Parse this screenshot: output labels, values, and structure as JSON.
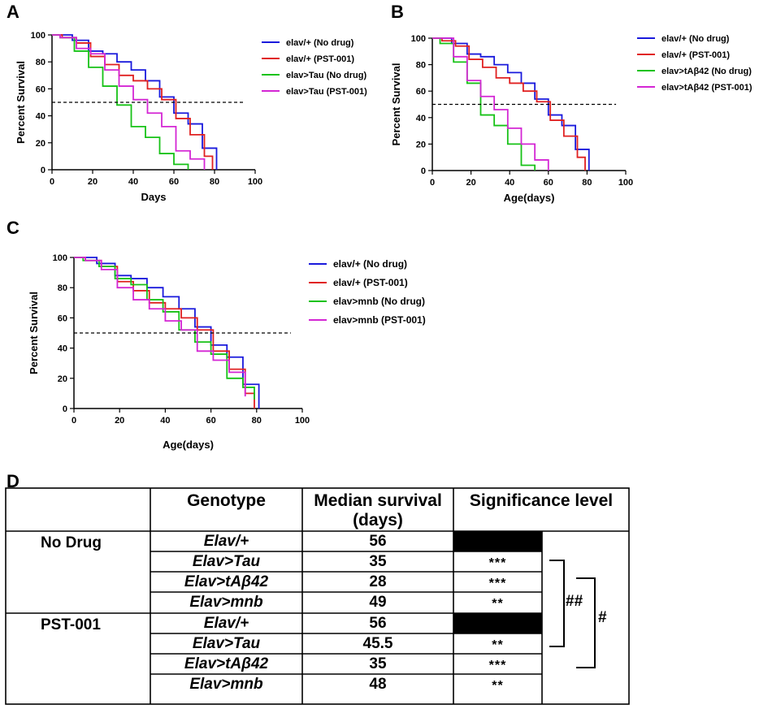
{
  "panels": [
    {
      "letter": "A",
      "xlabel": "Days",
      "ylabel": "Percent Survival",
      "series": [
        {
          "name": "elav/+ (No drug)",
          "color": "#1a1adc",
          "times": [
            0,
            10,
            18,
            25,
            32,
            39,
            46,
            53,
            60,
            67,
            74,
            81
          ],
          "values": [
            100,
            96,
            88,
            86,
            80,
            74,
            66,
            54,
            42,
            34,
            16,
            0
          ]
        },
        {
          "name": "elav/+ (PST-001)",
          "color": "#e02020",
          "times": [
            0,
            5,
            12,
            19,
            26,
            33,
            40,
            47,
            54,
            61,
            68,
            75,
            79
          ],
          "values": [
            100,
            98,
            94,
            84,
            78,
            70,
            66,
            60,
            52,
            38,
            26,
            10,
            0
          ]
        },
        {
          "name": "elav>Tau (No drug)",
          "color": "#17c217",
          "times": [
            0,
            4,
            11,
            18,
            25,
            32,
            39,
            46,
            53,
            60,
            67
          ],
          "values": [
            100,
            98,
            88,
            76,
            62,
            48,
            32,
            24,
            12,
            4,
            0
          ]
        },
        {
          "name": "elav>Tau (PST-001)",
          "color": "#d426d4",
          "times": [
            0,
            4,
            12,
            19,
            26,
            33,
            40,
            47,
            54,
            61,
            68,
            75
          ],
          "values": [
            100,
            98,
            90,
            86,
            74,
            62,
            52,
            42,
            32,
            14,
            8,
            0
          ]
        }
      ]
    },
    {
      "letter": "B",
      "xlabel": "Age(days)",
      "ylabel": "Percent Survival",
      "series": [
        {
          "name": "elav/+ (No drug)",
          "color": "#1a1adc",
          "times": [
            0,
            10,
            18,
            25,
            32,
            39,
            46,
            53,
            60,
            67,
            74,
            81
          ],
          "values": [
            100,
            96,
            88,
            86,
            80,
            74,
            66,
            54,
            42,
            34,
            16,
            0
          ]
        },
        {
          "name": "elav/+ (PST-001)",
          "color": "#e02020",
          "times": [
            0,
            5,
            12,
            19,
            26,
            33,
            40,
            47,
            54,
            61,
            68,
            75,
            79
          ],
          "values": [
            100,
            98,
            94,
            84,
            78,
            70,
            66,
            60,
            52,
            38,
            26,
            10,
            0
          ]
        },
        {
          "name": "elav>tAβ42 (No drug)",
          "color": "#17c217",
          "times": [
            0,
            4,
            11,
            18,
            25,
            32,
            39,
            46,
            53
          ],
          "values": [
            100,
            96,
            82,
            66,
            42,
            34,
            20,
            4,
            0
          ]
        },
        {
          "name": "elav>tAβ42 (PST-001)",
          "color": "#d426d4",
          "times": [
            0,
            11,
            18,
            25,
            32,
            39,
            46,
            53,
            60
          ],
          "values": [
            100,
            86,
            68,
            56,
            46,
            32,
            20,
            8,
            0
          ]
        }
      ]
    },
    {
      "letter": "C",
      "xlabel": "Age(days)",
      "ylabel": "Percent Survival",
      "series": [
        {
          "name": "elav/+ (No drug)",
          "color": "#1a1adc",
          "times": [
            0,
            10,
            18,
            25,
            32,
            39,
            46,
            53,
            60,
            67,
            74,
            81
          ],
          "values": [
            100,
            96,
            88,
            86,
            80,
            74,
            66,
            54,
            42,
            34,
            16,
            0
          ]
        },
        {
          "name": "elav/+ (PST-001)",
          "color": "#e02020",
          "times": [
            0,
            5,
            12,
            19,
            26,
            33,
            40,
            47,
            54,
            61,
            68,
            75,
            79
          ],
          "values": [
            100,
            98,
            94,
            84,
            78,
            70,
            66,
            60,
            52,
            38,
            26,
            10,
            0
          ]
        },
        {
          "name": "elav>mnb (No drug)",
          "color": "#17c217",
          "times": [
            0,
            4,
            11,
            18,
            25,
            32,
            39,
            46,
            53,
            60,
            67,
            74,
            79
          ],
          "values": [
            100,
            98,
            94,
            86,
            82,
            72,
            64,
            52,
            44,
            36,
            20,
            14,
            6
          ]
        },
        {
          "name": "elav>mnb (PST-001)",
          "color": "#d426d4",
          "times": [
            0,
            5,
            12,
            19,
            26,
            33,
            40,
            47,
            54,
            61,
            68,
            75
          ],
          "values": [
            100,
            98,
            92,
            80,
            72,
            66,
            58,
            52,
            38,
            32,
            24,
            8
          ]
        }
      ]
    }
  ],
  "chart_data": [
    {
      "type": "line",
      "title": "A",
      "xlabel": "Days",
      "ylabel": "Percent Survival",
      "xlim": [
        0,
        100
      ],
      "ylim": [
        0,
        100
      ],
      "xticks": [
        "0",
        "20",
        "40",
        "60",
        "80",
        "100"
      ],
      "yticks": [
        "0",
        "20",
        "40",
        "60",
        "80",
        "100"
      ],
      "reference_line": {
        "y": 50,
        "style": "dashed"
      }
    },
    {
      "type": "line",
      "title": "B",
      "xlabel": "Age(days)",
      "ylabel": "Percent Survival",
      "xlim": [
        0,
        100
      ],
      "ylim": [
        0,
        100
      ],
      "xticks": [
        "0",
        "20",
        "40",
        "60",
        "80",
        "100"
      ],
      "yticks": [
        "0",
        "20",
        "40",
        "60",
        "80",
        "100"
      ],
      "reference_line": {
        "y": 50,
        "style": "dashed"
      }
    },
    {
      "type": "line",
      "title": "C",
      "xlabel": "Age(days)",
      "ylabel": "Percent Survival",
      "xlim": [
        0,
        100
      ],
      "ylim": [
        0,
        100
      ],
      "xticks": [
        "0",
        "20",
        "40",
        "60",
        "80",
        "100"
      ],
      "yticks": [
        "0",
        "20",
        "40",
        "60",
        "80",
        "100"
      ],
      "reference_line": {
        "y": 50,
        "style": "dashed"
      }
    },
    {
      "type": "table",
      "title": "D",
      "columns": [
        "Genotype",
        "Median survival (days)",
        "Significance level"
      ],
      "rows": [
        {
          "group": "No Drug",
          "genotype": "Elav/+",
          "median": 56,
          "sig": ""
        },
        {
          "group": "No Drug",
          "genotype": "Elav>Tau",
          "median": 35,
          "sig": "***"
        },
        {
          "group": "No Drug",
          "genotype": "Elav>tAβ42",
          "median": 28,
          "sig": "***"
        },
        {
          "group": "No Drug",
          "genotype": "Elav>mnb",
          "median": 49,
          "sig": "**"
        },
        {
          "group": "PST-001",
          "genotype": "Elav/+",
          "median": 56,
          "sig": ""
        },
        {
          "group": "PST-001",
          "genotype": "Elav>Tau",
          "median": 45.5,
          "sig": "**"
        },
        {
          "group": "PST-001",
          "genotype": "Elav>tAβ42",
          "median": 35,
          "sig": "***"
        },
        {
          "group": "PST-001",
          "genotype": "Elav>mnb",
          "median": 48,
          "sig": "**"
        }
      ]
    }
  ],
  "ticks": {
    "x": [
      "0",
      "20",
      "40",
      "60",
      "80",
      "100"
    ],
    "y": [
      "0",
      "20",
      "40",
      "60",
      "80",
      "100"
    ]
  },
  "table": {
    "letter": "D",
    "header": {
      "genotype": "Genotype",
      "median_line1": "Median survival",
      "median_line2": "(days)",
      "significance": "Significance level"
    },
    "groups": [
      "No Drug",
      "PST-001"
    ],
    "rows": [
      {
        "genotype": "Elav/+",
        "median": "56",
        "sig": ""
      },
      {
        "genotype": "Elav>Tau",
        "median": "35",
        "sig": "***"
      },
      {
        "genotype": "Elav>tAβ42",
        "median": "28",
        "sig": "***"
      },
      {
        "genotype": "Elav>mnb",
        "median": "49",
        "sig": "**"
      },
      {
        "genotype": "Elav/+",
        "median": "56",
        "sig": ""
      },
      {
        "genotype": "Elav>Tau",
        "median": "45.5",
        "sig": "**"
      },
      {
        "genotype": "Elav>tAβ42",
        "median": "35",
        "sig": "***"
      },
      {
        "genotype": "Elav>mnb",
        "median": "48",
        "sig": "**"
      }
    ],
    "brackets": [
      "##",
      "#"
    ]
  }
}
